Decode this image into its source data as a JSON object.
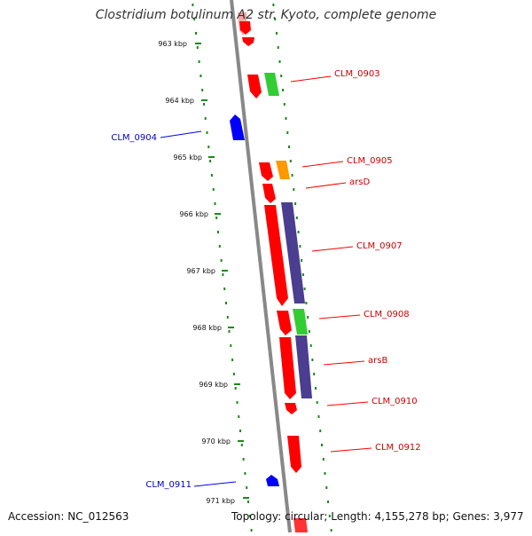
{
  "title": "Clostridium botulinum A2 str. Kyoto, complete genome",
  "footer": {
    "accession": "Accession: NC_012563",
    "summary": "Topology: circular; Length: 4,155,278 bp; Genes: 3,977"
  },
  "scale_ticks": [
    "963 kbp",
    "964 kbp",
    "965 kbp",
    "966 kbp",
    "967 kbp",
    "968 kbp",
    "969 kbp",
    "970 kbp",
    "971 kbp"
  ],
  "colors": {
    "forward": "#ff0000",
    "reverse": "#0000ff",
    "green": "#33cc33",
    "orange": "#ff9900",
    "purple": "#4b3d8f",
    "backbone": "#888888",
    "dots": "#1a8a1a"
  },
  "gene_labels": [
    {
      "text": "CLM_0903",
      "strand": "forward"
    },
    {
      "text": "CLM_0904",
      "strand": "reverse"
    },
    {
      "text": "CLM_0905",
      "strand": "forward"
    },
    {
      "text": "arsD",
      "strand": "forward"
    },
    {
      "text": "CLM_0907",
      "strand": "forward"
    },
    {
      "text": "CLM_0908",
      "strand": "forward"
    },
    {
      "text": "arsB",
      "strand": "forward"
    },
    {
      "text": "CLM_0910",
      "strand": "forward"
    },
    {
      "text": "CLM_0912",
      "strand": "forward"
    },
    {
      "text": "CLM_0911",
      "strand": "reverse"
    }
  ]
}
